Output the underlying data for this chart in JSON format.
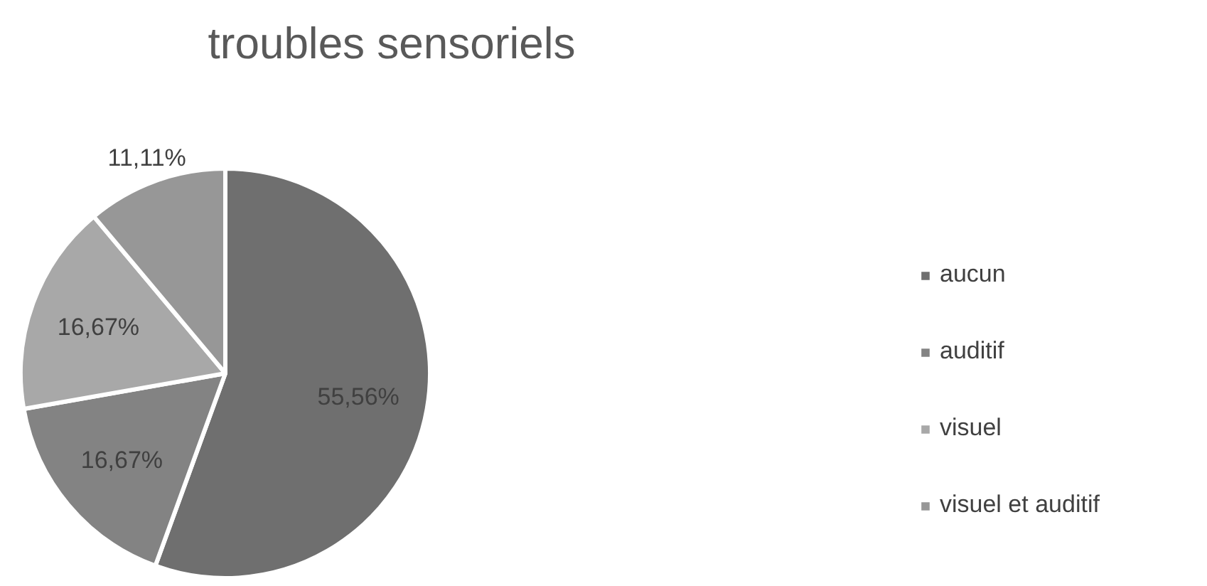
{
  "chart_data": {
    "type": "pie",
    "title": "troubles sensoriels",
    "categories": [
      "aucun",
      "auditif",
      "visuel",
      "visuel et auditif"
    ],
    "values": [
      55.56,
      16.67,
      16.67,
      11.11
    ],
    "colors": [
      "#6f6f6f",
      "#838383",
      "#a8a8a8",
      "#979797"
    ],
    "value_labels": [
      "55,56%",
      "16,67%",
      "16,67%",
      "11,11%"
    ],
    "legend": "right"
  }
}
